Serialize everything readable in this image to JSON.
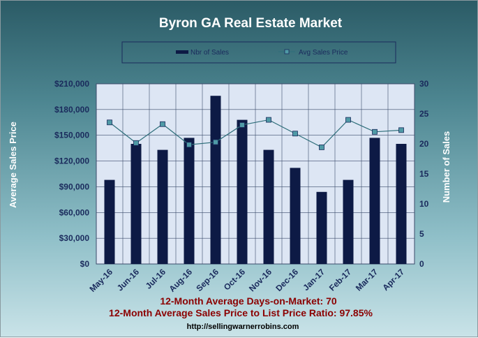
{
  "chart_data": {
    "type": "bar",
    "title": "Byron GA Real Estate Market",
    "categories": [
      "May-16",
      "Jun-16",
      "Jul-16",
      "Aug-16",
      "Sep-16",
      "Oct-16",
      "Nov-16",
      "Dec-16",
      "Jan-17",
      "Feb-17",
      "Mar-17",
      "Apr-17"
    ],
    "series": [
      {
        "name": "Nbr of Sales",
        "type": "bar",
        "axis": "right",
        "color": "#0d1a45",
        "values": [
          14,
          20,
          19,
          21,
          28,
          24,
          19,
          16,
          12,
          14,
          21,
          20
        ]
      },
      {
        "name": "Avg Sales Price",
        "type": "line",
        "axis": "left",
        "color": "#2e6e7a",
        "values": [
          165000,
          141000,
          163000,
          139000,
          142000,
          162000,
          168000,
          152000,
          136000,
          168000,
          154000,
          156000
        ]
      }
    ],
    "ylabel": "Average Sales Price",
    "y2label": "Number of Sales",
    "ylim": [
      0,
      210000
    ],
    "y2lim": [
      0,
      30
    ],
    "yticks": [
      "$0",
      "$30,000",
      "$60,000",
      "$90,000",
      "$120,000",
      "$150,000",
      "$180,000",
      "$210,000"
    ],
    "y2ticks": [
      "0",
      "5",
      "10",
      "15",
      "20",
      "25",
      "30"
    ],
    "legend_position": "top",
    "grid": true
  },
  "notes": {
    "days_on_market": "12-Month Average Days-on-Market: 70",
    "price_ratio": "12-Month Average Sales Price to List Price Ratio: 97.85%",
    "url": "http://sellingwarnerrobins.com"
  },
  "colors": {
    "plot_bg": "#dde6f4",
    "bar": "#0d1a45",
    "line": "#2e6e7a",
    "marker_fill": "#4f9aa6",
    "note": "#8b0000"
  }
}
